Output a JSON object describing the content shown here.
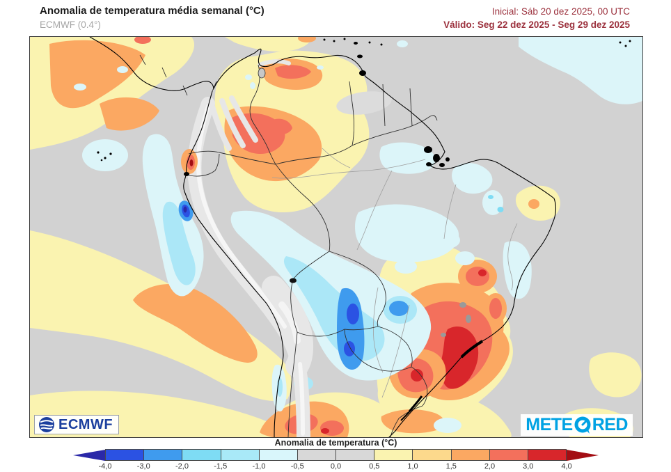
{
  "header": {
    "title": "Anomalia de temperatura média semanal (°C)",
    "model": "ECMWF (0.4°)",
    "run_info": "Inicial: Sáb 20 dez 2025, 00 UTC",
    "valid_info": "Válido: Seg 22 dez 2025 - Seg 29 dez 2025"
  },
  "branding": {
    "ecmwf": "ECMWF",
    "meteored_left": "METE",
    "meteored_right": "RED"
  },
  "colorbar": {
    "title": "Anomalia de temperatura (°C)",
    "ticks": [
      "-4,0",
      "-3,0",
      "-2,0",
      "-1,5",
      "-1,0",
      "-0,5",
      "0,0",
      "0,5",
      "1,0",
      "1,5",
      "2,0",
      "3,0",
      "4,0"
    ],
    "segments": [
      "#2b52e3",
      "#3f9bee",
      "#7edcf4",
      "#a9e9f8",
      "#d9f6fb",
      "#d8d8d8",
      "#d8d8d8",
      "#faf3b0",
      "#fcd98c",
      "#fba862",
      "#f3705c",
      "#d8262b"
    ],
    "arrow_left_color": "#2a28a8",
    "arrow_right_color": "#a30d13",
    "map_neutral_color": "#d2d2d2",
    "map_terrain_color": "#e7e7e7"
  }
}
